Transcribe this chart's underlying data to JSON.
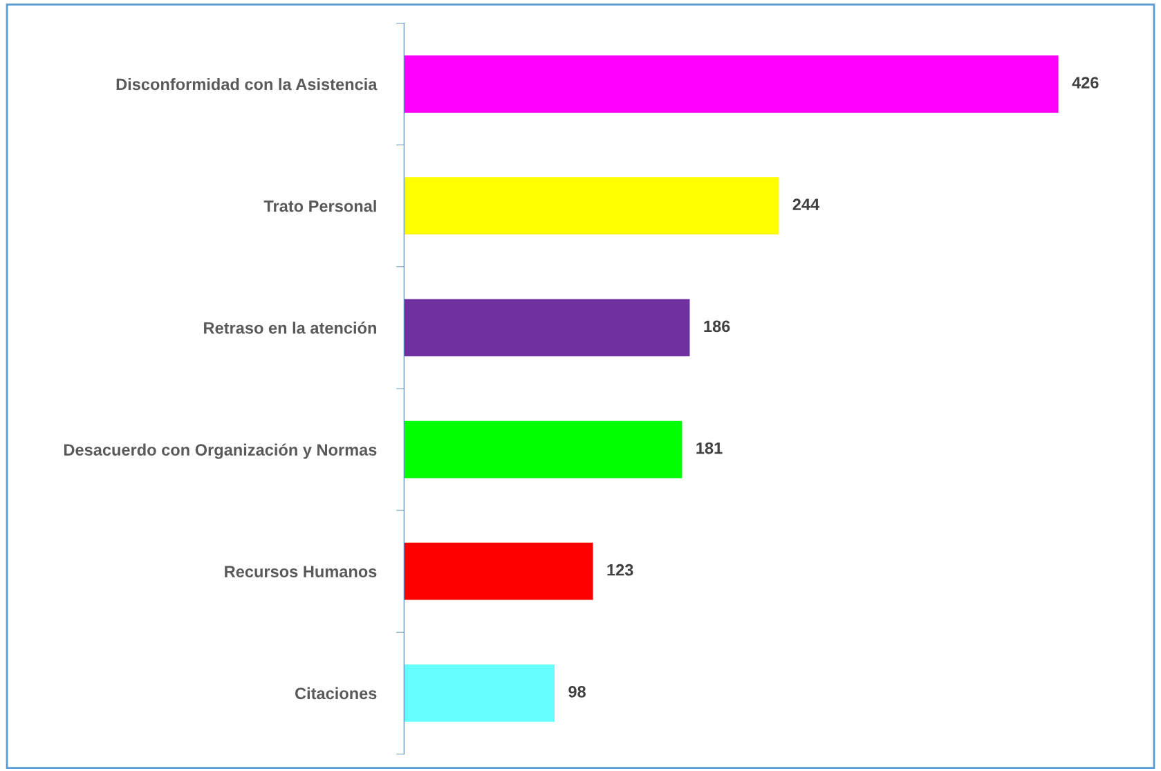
{
  "chart_data": {
    "type": "bar",
    "orientation": "horizontal",
    "data_labels": true,
    "grid": false,
    "legend": false,
    "categories": [
      "Disconformidad con la Asistencia",
      "Trato Personal",
      "Retraso en la atención",
      "Desacuerdo con Organización y Normas",
      "Recursos Humanos",
      "Citaciones"
    ],
    "values": [
      426,
      244,
      186,
      181,
      123,
      98
    ],
    "colors": [
      "#ff00ff",
      "#ffff00",
      "#7030a0",
      "#00ff00",
      "#ff0000",
      "#66ffff"
    ]
  }
}
